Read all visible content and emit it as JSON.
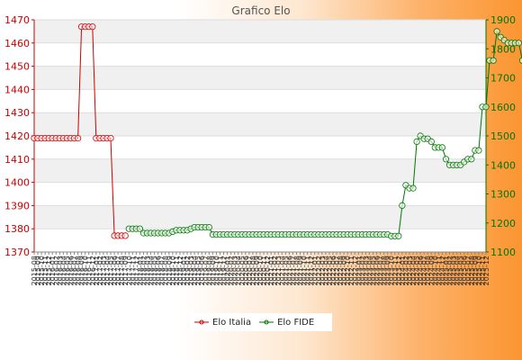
{
  "chart_data": {
    "type": "line",
    "title": "Grafico Elo",
    "y_left": {
      "ticks": [
        1370,
        1380,
        1390,
        1400,
        1410,
        1420,
        1430,
        1440,
        1450,
        1460,
        1470
      ],
      "range": [
        1370,
        1470
      ],
      "color": "#cc0000"
    },
    "y_right": {
      "ticks": [
        1100,
        1200,
        1300,
        1400,
        1500,
        1600,
        1700,
        1800,
        1900
      ],
      "range": [
        1100,
        1900
      ],
      "color": "#007700"
    },
    "x_tick_labels": [
      "2015-08",
      "2015-09",
      "2015-10",
      "2015-11",
      "2015-12",
      "2016-01",
      "2016-02",
      "2016-03",
      "2016-04",
      "2016-05",
      "2016-06",
      "2016-07",
      "2016-08",
      "2016-09",
      "2016-10",
      "2016-11",
      "2016-12",
      "2017-01",
      "2017-02",
      "2017-03",
      "2017-04",
      "2017-05",
      "2017-06",
      "2017-07",
      "2017-08",
      "2017-09",
      "2017-10",
      "2017-11",
      "2017-12",
      "2018-01",
      "2018-02",
      "2018-03",
      "2018-04",
      "2018-05",
      "2018-06",
      "2018-07",
      "2018-08",
      "2018-09",
      "2018-10",
      "2018-11",
      "2018-12",
      "2019-01",
      "2019-02",
      "2019-03",
      "2019-04",
      "2019-05",
      "2019-06",
      "2019-07",
      "2019-08",
      "2019-09",
      "2019-10",
      "2019-11",
      "2019-12",
      "2020-01",
      "2020-02",
      "2020-03",
      "2020-04",
      "2020-05",
      "2020-06",
      "2020-07",
      "2020-08",
      "2020-09",
      "2020-10",
      "2020-11",
      "2020-12",
      "2021-01",
      "2021-02",
      "2021-03",
      "2021-04",
      "2021-05",
      "2021-06",
      "2021-07",
      "2021-08",
      "2021-09",
      "2021-10",
      "2021-11",
      "2021-12",
      "2022-01",
      "2022-02",
      "2022-03",
      "2022-04",
      "2022-05",
      "2022-06",
      "2022-07",
      "2022-08",
      "2022-09",
      "2022-10",
      "2022-11",
      "2022-12",
      "2023-01",
      "2023-02",
      "2023-03",
      "2023-04",
      "2023-05",
      "2023-06",
      "2023-07",
      "2023-08",
      "2023-09",
      "2023-10",
      "2023-11",
      "2023-12",
      "2024-01",
      "2024-02",
      "2024-03",
      "2024-04",
      "2024-05",
      "2024-06",
      "2024-07",
      "2024-08",
      "2024-09",
      "2024-10",
      "2024-11",
      "2024-12",
      "2025-01",
      "2025-02",
      "2025-03",
      "2025-04",
      "2025-05",
      "2025-06",
      "2025-07",
      "2025-08",
      "2025-09",
      "2025-10",
      "2025-11",
      "2025-12"
    ],
    "series": [
      {
        "name": "Elo Italia",
        "color": "#cc0000",
        "axis": "left",
        "values": [
          1419,
          1419,
          1419,
          1419,
          1419,
          1419,
          1419,
          1419,
          1419,
          1419,
          1419,
          1419,
          1419,
          1467,
          1467,
          1467,
          1467,
          1419,
          1419,
          1419,
          1419,
          1419,
          1377,
          1377,
          1377,
          1377
        ]
      },
      {
        "name": "Elo FIDE",
        "color": "#007700",
        "axis": "right",
        "start_index": 26,
        "values": [
          1180,
          1180,
          1180,
          1180,
          1165,
          1165,
          1165,
          1165,
          1165,
          1165,
          1165,
          1165,
          1170,
          1175,
          1175,
          1175,
          1175,
          1180,
          1185,
          1185,
          1185,
          1185,
          1185,
          1160,
          1160,
          1160,
          1160,
          1160,
          1160,
          1160,
          1160,
          1160,
          1160,
          1160,
          1160,
          1160,
          1160,
          1160,
          1160,
          1160,
          1160,
          1160,
          1160,
          1160,
          1160,
          1160,
          1160,
          1160,
          1160,
          1160,
          1160,
          1160,
          1160,
          1160,
          1160,
          1160,
          1160,
          1160,
          1160,
          1160,
          1160,
          1160,
          1160,
          1160,
          1160,
          1160,
          1160,
          1160,
          1160,
          1160,
          1160,
          1160,
          1155,
          1155,
          1155,
          1260,
          1330,
          1320,
          1320,
          1480,
          1500,
          1490,
          1490,
          1480,
          1460,
          1460,
          1460,
          1420,
          1400,
          1400,
          1400,
          1400,
          1410,
          1420,
          1420,
          1450,
          1450,
          1600,
          1600,
          1760,
          1760,
          1860,
          1840,
          1830,
          1820,
          1820,
          1820,
          1820,
          1760,
          1750,
          1760,
          1760,
          1740,
          1740,
          1740,
          1740,
          1750,
          1840,
          1840,
          1760,
          1780
        ]
      }
    ],
    "legend": "bottom-center"
  }
}
